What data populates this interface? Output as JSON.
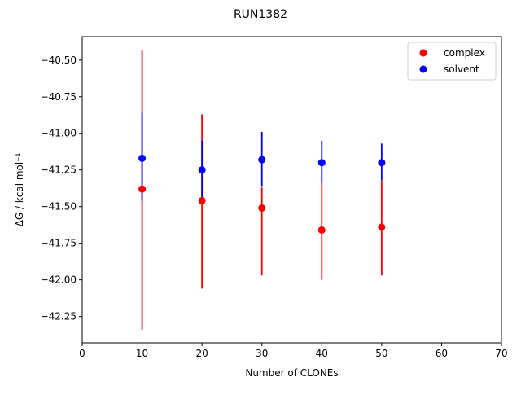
{
  "chart_data": {
    "type": "scatter",
    "title": "RUN1382",
    "xlabel": "Number of CLONEs",
    "ylabel": "ΔG / kcal mol⁻¹",
    "xlim": [
      0,
      70
    ],
    "ylim": [
      -42.43,
      -40.34
    ],
    "xticks": [
      "0",
      "10",
      "20",
      "30",
      "40",
      "50",
      "60",
      "70"
    ],
    "yticks": [
      "−42.25",
      "−42.00",
      "−41.75",
      "−41.50",
      "−41.25",
      "−41.00",
      "−40.75",
      "−40.50"
    ],
    "xtick_values": [
      0,
      10,
      20,
      30,
      40,
      50,
      60,
      70
    ],
    "ytick_values": [
      -42.25,
      -42.0,
      -41.75,
      -41.5,
      -41.25,
      -41.0,
      -40.75,
      -40.5
    ],
    "legend_position": "top-right",
    "grid": false,
    "series": [
      {
        "name": "complex",
        "color": "#ff0000",
        "x": [
          10,
          20,
          30,
          40,
          50
        ],
        "y": [
          -41.38,
          -41.46,
          -41.51,
          -41.66,
          -41.64
        ],
        "yerr_low": [
          -42.34,
          -42.06,
          -41.97,
          -42.0,
          -41.97
        ],
        "yerr_high": [
          -40.43,
          -40.87,
          -41.37,
          -41.34,
          -41.32
        ]
      },
      {
        "name": "solvent",
        "color": "#0000ff",
        "x": [
          10,
          20,
          30,
          40,
          50
        ],
        "y": [
          -41.17,
          -41.25,
          -41.18,
          -41.2,
          -41.2
        ],
        "yerr_low": [
          -41.46,
          -41.44,
          -41.36,
          -41.34,
          -41.32
        ],
        "yerr_high": [
          -40.86,
          -41.05,
          -40.99,
          -41.05,
          -41.07
        ]
      }
    ]
  }
}
